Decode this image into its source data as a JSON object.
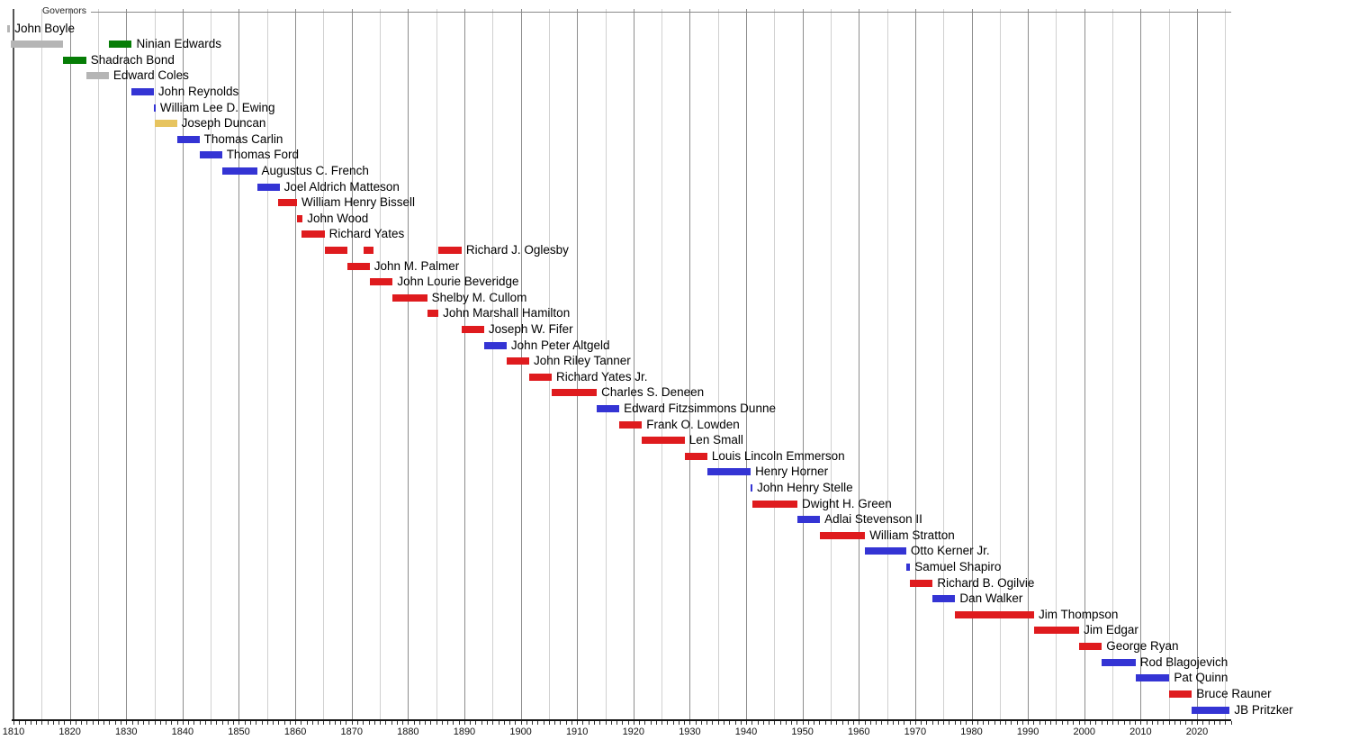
{
  "title": "Governors",
  "chart_data": {
    "type": "bar",
    "subtype": "timeline-gantt",
    "title": "Governors",
    "legend_position": "top-left",
    "grid": "on",
    "x_axis": {
      "range": [
        1808,
        2026
      ],
      "major_interval": 10,
      "minor_interval": 5,
      "tick_labels": [
        "1810",
        "1820",
        "1830",
        "1840",
        "1850",
        "1860",
        "1870",
        "1880",
        "1890",
        "1900",
        "1910",
        "1920",
        "1930",
        "1940",
        "1950",
        "1960",
        "1970",
        "1980",
        "1990",
        "2000",
        "2010",
        "2020"
      ]
    },
    "colors": {
      "gray": "#b5b5b5",
      "green": "#067d06",
      "blue": "#3434d4",
      "yellow": "#e7c45f",
      "red": "#df1b1e"
    },
    "rows": [
      {
        "name": "John Boyle",
        "bars": [
          {
            "start": 1808.9,
            "end": 1809.4,
            "color": "gray"
          }
        ]
      },
      {
        "name": "Ninian Edwards",
        "bars": [
          {
            "start": 1809.5,
            "end": 1818.8,
            "color": "gray"
          },
          {
            "start": 1826.9,
            "end": 1831.0,
            "color": "green"
          }
        ]
      },
      {
        "name": "Shadrach Bond",
        "bars": [
          {
            "start": 1818.8,
            "end": 1822.9,
            "color": "green"
          }
        ]
      },
      {
        "name": "Edward Coles",
        "bars": [
          {
            "start": 1822.9,
            "end": 1826.9,
            "color": "gray"
          }
        ]
      },
      {
        "name": "John Reynolds",
        "bars": [
          {
            "start": 1830.9,
            "end": 1834.9,
            "color": "blue"
          }
        ]
      },
      {
        "name": "William Lee D. Ewing",
        "bars": [
          {
            "start": 1834.9,
            "end": 1835.2,
            "color": "blue"
          }
        ]
      },
      {
        "name": "Joseph Duncan",
        "bars": [
          {
            "start": 1835.0,
            "end": 1839.0,
            "color": "yellow"
          }
        ]
      },
      {
        "name": "Thomas Carlin",
        "bars": [
          {
            "start": 1839.0,
            "end": 1843.0,
            "color": "blue"
          }
        ]
      },
      {
        "name": "Thomas Ford",
        "bars": [
          {
            "start": 1843.0,
            "end": 1847.0,
            "color": "blue"
          }
        ]
      },
      {
        "name": "Augustus C. French",
        "bars": [
          {
            "start": 1847.0,
            "end": 1853.2,
            "color": "blue"
          }
        ]
      },
      {
        "name": "Joel Aldrich Matteson",
        "bars": [
          {
            "start": 1853.2,
            "end": 1857.2,
            "color": "blue"
          }
        ]
      },
      {
        "name": "William Henry Bissell",
        "bars": [
          {
            "start": 1856.9,
            "end": 1860.3,
            "color": "red"
          }
        ]
      },
      {
        "name": "John Wood",
        "bars": [
          {
            "start": 1860.3,
            "end": 1861.3,
            "color": "red"
          }
        ]
      },
      {
        "name": "Richard Yates",
        "bars": [
          {
            "start": 1861.1,
            "end": 1865.2,
            "color": "red"
          }
        ]
      },
      {
        "name": "Richard J. Oglesby",
        "bars": [
          {
            "start": 1865.2,
            "end": 1869.2,
            "color": "red"
          },
          {
            "start": 1872.1,
            "end": 1873.9,
            "color": "red"
          },
          {
            "start": 1885.4,
            "end": 1889.5,
            "color": "red"
          }
        ]
      },
      {
        "name": "John M. Palmer",
        "bars": [
          {
            "start": 1869.2,
            "end": 1873.2,
            "color": "red"
          }
        ]
      },
      {
        "name": "John Lourie Beveridge",
        "bars": [
          {
            "start": 1873.3,
            "end": 1877.3,
            "color": "red"
          }
        ]
      },
      {
        "name": "Shelby M. Cullom",
        "bars": [
          {
            "start": 1877.3,
            "end": 1883.4,
            "color": "red"
          }
        ]
      },
      {
        "name": "John Marshall Hamilton",
        "bars": [
          {
            "start": 1883.4,
            "end": 1885.4,
            "color": "red"
          }
        ]
      },
      {
        "name": "Joseph W. Fifer",
        "bars": [
          {
            "start": 1889.5,
            "end": 1893.5,
            "color": "red"
          }
        ]
      },
      {
        "name": "John Peter Altgeld",
        "bars": [
          {
            "start": 1893.5,
            "end": 1897.5,
            "color": "blue"
          }
        ]
      },
      {
        "name": "John Riley Tanner",
        "bars": [
          {
            "start": 1897.5,
            "end": 1901.5,
            "color": "red"
          }
        ]
      },
      {
        "name": "Richard Yates Jr.",
        "bars": [
          {
            "start": 1901.5,
            "end": 1905.5,
            "color": "red"
          }
        ]
      },
      {
        "name": "Charles S. Deneen",
        "bars": [
          {
            "start": 1905.5,
            "end": 1913.5,
            "color": "red"
          }
        ]
      },
      {
        "name": "Edward Fitzsimmons Dunne",
        "bars": [
          {
            "start": 1913.5,
            "end": 1917.5,
            "color": "blue"
          }
        ]
      },
      {
        "name": "Frank O. Lowden",
        "bars": [
          {
            "start": 1917.5,
            "end": 1921.5,
            "color": "red"
          }
        ]
      },
      {
        "name": "Len Small",
        "bars": [
          {
            "start": 1921.5,
            "end": 1929.1,
            "color": "red"
          }
        ]
      },
      {
        "name": "Louis Lincoln Emmerson",
        "bars": [
          {
            "start": 1929.1,
            "end": 1933.1,
            "color": "red"
          }
        ]
      },
      {
        "name": "Henry Horner",
        "bars": [
          {
            "start": 1933.1,
            "end": 1940.8,
            "color": "blue"
          }
        ]
      },
      {
        "name": "John Henry Stelle",
        "bars": [
          {
            "start": 1940.8,
            "end": 1941.1,
            "color": "blue"
          }
        ]
      },
      {
        "name": "Dwight H. Green",
        "bars": [
          {
            "start": 1941.1,
            "end": 1949.1,
            "color": "red"
          }
        ]
      },
      {
        "name": "Adlai Stevenson II",
        "bars": [
          {
            "start": 1949.1,
            "end": 1953.1,
            "color": "blue"
          }
        ]
      },
      {
        "name": "William Stratton",
        "bars": [
          {
            "start": 1953.1,
            "end": 1961.1,
            "color": "red"
          }
        ]
      },
      {
        "name": "Otto Kerner Jr.",
        "bars": [
          {
            "start": 1961.1,
            "end": 1968.4,
            "color": "blue"
          }
        ]
      },
      {
        "name": "Samuel Shapiro",
        "bars": [
          {
            "start": 1968.4,
            "end": 1969.1,
            "color": "blue"
          }
        ]
      },
      {
        "name": "Richard B. Ogilvie",
        "bars": [
          {
            "start": 1969.1,
            "end": 1973.1,
            "color": "red"
          }
        ]
      },
      {
        "name": "Dan Walker",
        "bars": [
          {
            "start": 1973.1,
            "end": 1977.1,
            "color": "blue"
          }
        ]
      },
      {
        "name": "Jim Thompson",
        "bars": [
          {
            "start": 1977.1,
            "end": 1991.1,
            "color": "red"
          }
        ]
      },
      {
        "name": "Jim Edgar",
        "bars": [
          {
            "start": 1991.1,
            "end": 1999.1,
            "color": "red"
          }
        ]
      },
      {
        "name": "George Ryan",
        "bars": [
          {
            "start": 1999.1,
            "end": 2003.1,
            "color": "red"
          }
        ]
      },
      {
        "name": "Rod Blagojevich",
        "bars": [
          {
            "start": 2003.1,
            "end": 2009.1,
            "color": "blue"
          }
        ]
      },
      {
        "name": "Pat Quinn",
        "bars": [
          {
            "start": 2009.1,
            "end": 2015.1,
            "color": "blue"
          }
        ]
      },
      {
        "name": "Bruce Rauner",
        "bars": [
          {
            "start": 2015.1,
            "end": 2019.1,
            "color": "red"
          }
        ]
      },
      {
        "name": "JB Pritzker",
        "bars": [
          {
            "start": 2019.1,
            "end": 2025.8,
            "color": "blue"
          }
        ]
      }
    ]
  }
}
